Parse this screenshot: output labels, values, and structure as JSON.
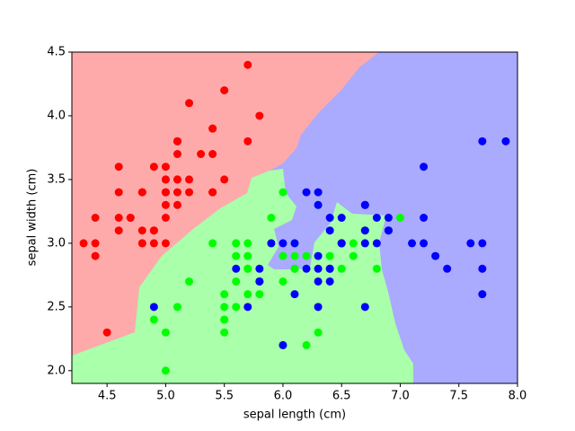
{
  "chart_data": {
    "type": "scatter",
    "x_label": "sepal length (cm)",
    "y_label": "sepal width (cm)",
    "xlim": [
      4.2,
      8.0
    ],
    "ylim": [
      1.9,
      4.5
    ],
    "xticks": [
      4.5,
      {
        "value": 5.0,
        "label": "5.0"
      },
      5.5,
      {
        "value": 6.0,
        "label": "6.0"
      },
      6.5,
      {
        "value": 7.0,
        "label": "7.0"
      },
      7.5,
      {
        "value": 8.0,
        "label": "8.0"
      }
    ],
    "yticks": [
      {
        "value": 2.0,
        "label": "2.0"
      },
      2.5,
      {
        "value": 3.0,
        "label": "3.0"
      },
      3.5,
      {
        "value": 4.0,
        "label": "4.0"
      },
      4.5
    ],
    "grid": false,
    "series": [
      {
        "color": "#ff0000",
        "x": [
          5.1,
          4.9,
          4.7,
          4.6,
          5.0,
          5.4,
          4.6,
          5.0,
          4.4,
          4.9,
          5.4,
          4.8,
          4.8,
          4.3,
          5.8,
          5.7,
          5.4,
          5.1,
          5.7,
          5.1,
          5.4,
          5.1,
          4.6,
          5.1,
          4.8,
          5.0,
          5.0,
          5.2,
          5.2,
          4.7,
          4.8,
          5.4,
          5.2,
          5.5,
          4.9,
          5.0,
          5.5,
          4.9,
          4.4,
          5.1,
          5.0,
          4.5,
          4.4,
          5.0,
          5.1,
          4.8,
          5.1,
          4.6,
          5.3,
          5.0
        ],
        "values": [
          3.5,
          3.0,
          3.2,
          3.1,
          3.6,
          3.9,
          3.4,
          3.4,
          2.9,
          3.1,
          3.7,
          3.4,
          3.0,
          3.0,
          4.0,
          4.4,
          3.9,
          3.5,
          3.8,
          3.8,
          3.4,
          3.7,
          3.6,
          3.3,
          3.4,
          3.0,
          3.4,
          3.5,
          3.4,
          3.2,
          3.1,
          3.4,
          4.1,
          4.2,
          3.1,
          3.2,
          3.5,
          3.6,
          3.0,
          3.4,
          3.5,
          2.3,
          3.2,
          3.5,
          3.8,
          3.0,
          3.8,
          3.2,
          3.7,
          3.3
        ]
      },
      {
        "color": "#00ff00",
        "x": [
          7.0,
          6.4,
          6.9,
          5.5,
          6.5,
          5.7,
          6.3,
          4.9,
          6.6,
          5.2,
          5.0,
          5.9,
          6.0,
          6.1,
          5.6,
          6.7,
          5.6,
          5.8,
          6.2,
          5.6,
          5.9,
          6.1,
          6.3,
          6.1,
          6.4,
          6.6,
          6.8,
          6.7,
          6.0,
          5.7,
          5.5,
          5.5,
          5.8,
          6.0,
          5.4,
          6.0,
          6.7,
          6.3,
          5.6,
          5.5,
          5.5,
          6.1,
          5.8,
          5.0,
          5.6,
          5.7,
          5.7,
          6.2,
          5.1,
          5.7
        ],
        "values": [
          3.2,
          3.2,
          3.1,
          2.3,
          2.8,
          2.8,
          3.3,
          2.4,
          2.9,
          2.7,
          2.0,
          3.0,
          2.2,
          2.9,
          2.9,
          3.1,
          3.0,
          2.7,
          2.2,
          2.5,
          3.2,
          2.8,
          2.5,
          2.8,
          2.9,
          3.0,
          2.8,
          3.0,
          2.9,
          2.6,
          2.4,
          2.4,
          2.7,
          2.7,
          3.0,
          3.4,
          3.1,
          2.3,
          3.0,
          2.5,
          2.6,
          3.0,
          2.6,
          2.3,
          2.7,
          3.0,
          2.9,
          2.9,
          2.5,
          2.8
        ]
      },
      {
        "color": "#0000ff",
        "x": [
          6.3,
          5.8,
          7.1,
          6.3,
          6.5,
          7.6,
          4.9,
          7.3,
          6.7,
          7.2,
          6.5,
          6.4,
          6.8,
          5.7,
          5.8,
          6.4,
          6.5,
          7.7,
          7.7,
          6.0,
          6.9,
          5.6,
          7.7,
          6.3,
          6.7,
          7.2,
          6.2,
          6.1,
          6.4,
          7.2,
          7.4,
          7.9,
          6.4,
          6.3,
          6.1,
          7.7,
          6.3,
          6.4,
          6.0,
          6.9,
          6.7,
          6.9,
          5.8,
          6.8,
          6.7,
          6.7,
          6.3,
          6.5,
          6.2,
          5.9
        ],
        "values": [
          3.3,
          2.7,
          3.0,
          2.9,
          3.0,
          3.0,
          2.5,
          2.9,
          2.5,
          3.6,
          3.2,
          2.7,
          3.0,
          2.5,
          2.8,
          3.2,
          3.0,
          3.8,
          2.6,
          2.2,
          3.2,
          2.8,
          2.8,
          2.7,
          3.3,
          3.2,
          2.8,
          3.0,
          2.8,
          3.0,
          2.8,
          3.8,
          2.8,
          2.8,
          2.6,
          3.0,
          3.4,
          3.1,
          3.0,
          3.1,
          3.1,
          3.1,
          2.7,
          3.2,
          3.3,
          3.0,
          2.5,
          3.0,
          3.4,
          3.0
        ]
      }
    ]
  }
}
